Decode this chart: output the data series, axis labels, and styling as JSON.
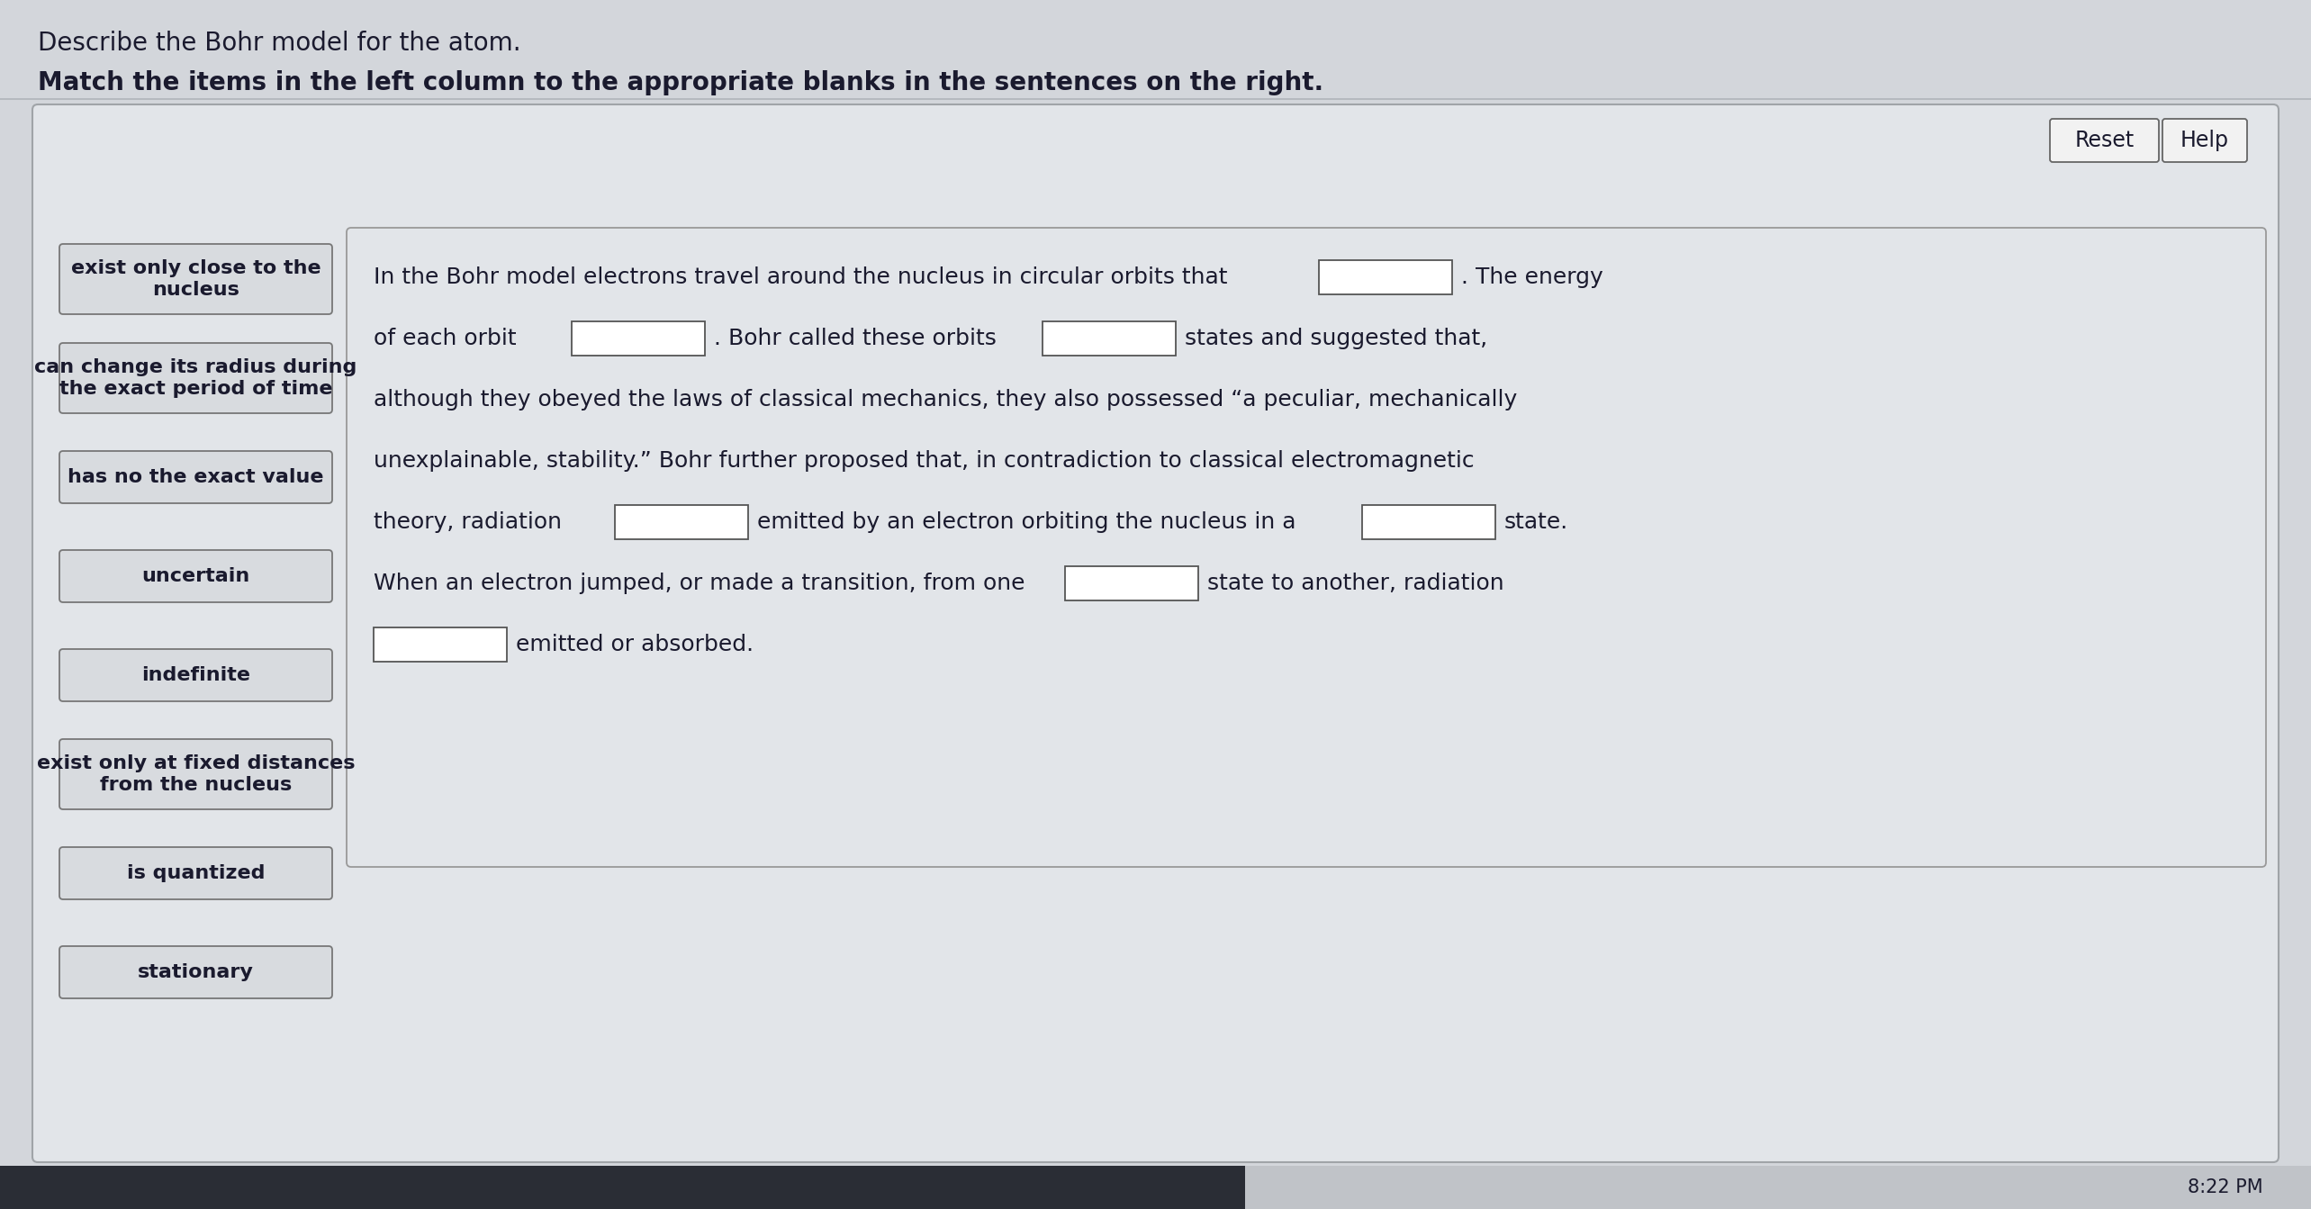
{
  "title": "Describe the Bohr model for the atom.",
  "subtitle": "Match the items in the left column to the appropriate blanks in the sentences on the right.",
  "bg_color": "#d3d6db",
  "panel_bg": "#e2e5e9",
  "box_bg": "#d8dbdf",
  "box_border": "#888888",
  "text_color": "#1a1a2e",
  "reset_btn": "Reset",
  "help_btn": "Help",
  "left_items": [
    "exist only close to the\nnucleus",
    "can change its radius during\nthe exact period of time",
    "has no the exact value",
    "uncertain",
    "indefinite",
    "exist only at fixed distances\nfrom the nucleus",
    "is quantized",
    "stationary"
  ]
}
